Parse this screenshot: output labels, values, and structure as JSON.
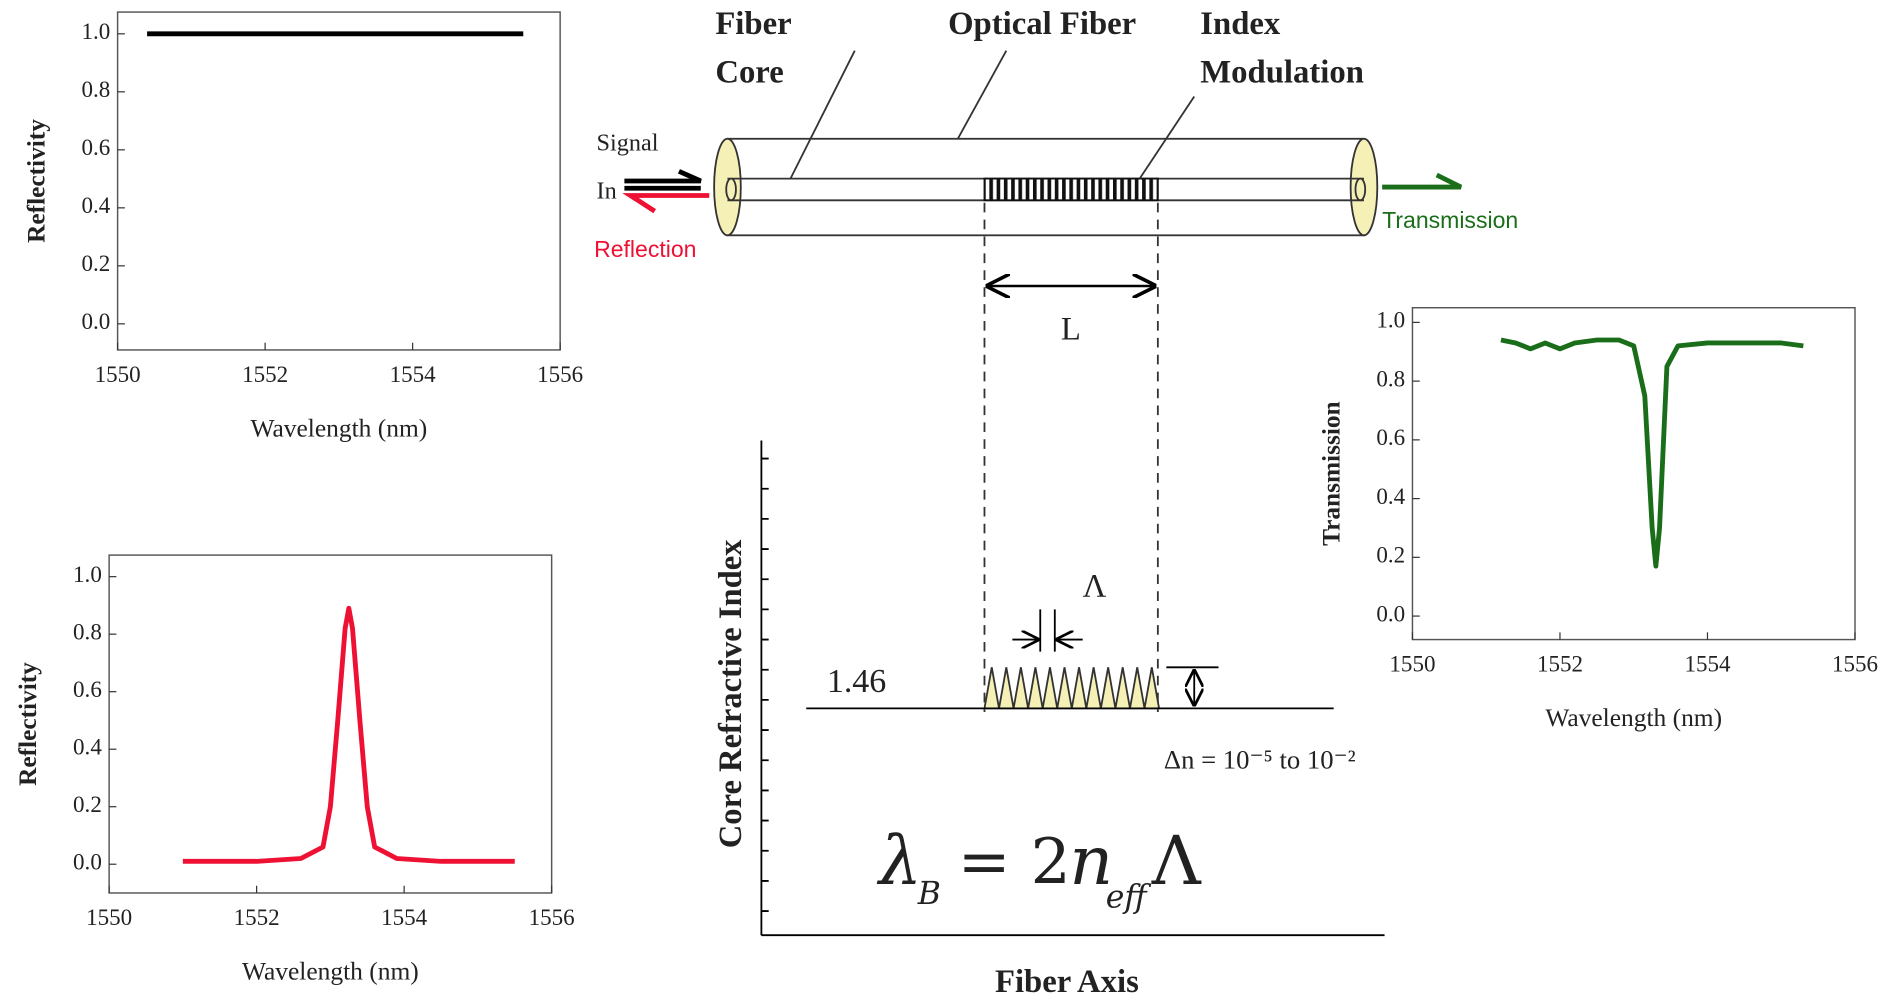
{
  "chart_data": [
    {
      "type": "line",
      "y_label": "Reflectivity",
      "x_label": "Wavelength (nm)",
      "xlim": [
        1550,
        1556
      ],
      "xticks": [
        1550,
        1552,
        1554,
        1556
      ],
      "ylim": [
        -0.09,
        1.075
      ],
      "yticks": [
        {
          "value": 0,
          "label": "0.0"
        },
        0.2,
        0.4,
        0.6,
        0.8,
        {
          "value": 1,
          "label": "1.0"
        }
      ],
      "series": [
        {
          "color": "#000000",
          "x": [
            1550.4,
            1555.5
          ],
          "values": [
            1.0,
            1.0
          ]
        }
      ]
    },
    {
      "type": "line",
      "y_label": "Reflectivity",
      "x_label": "Wavelength (nm)",
      "xlim": [
        1550,
        1556
      ],
      "xticks": [
        1550,
        1552,
        1554,
        1556
      ],
      "ylim": [
        -0.1,
        1.075
      ],
      "yticks": [
        {
          "value": 0,
          "label": "0.0"
        },
        0.2,
        0.4,
        0.6,
        0.8,
        {
          "value": 1,
          "label": "1.0"
        }
      ],
      "series": [
        {
          "color": "#ee1133",
          "x": [
            1551,
            1552,
            1552.6,
            1552.9,
            1553.0,
            1553.1,
            1553.2,
            1553.25,
            1553.3,
            1553.4,
            1553.5,
            1553.6,
            1553.9,
            1554.5,
            1555.5
          ],
          "values": [
            0.01,
            0.01,
            0.02,
            0.06,
            0.2,
            0.5,
            0.82,
            0.89,
            0.82,
            0.5,
            0.2,
            0.06,
            0.02,
            0.01,
            0.01
          ]
        }
      ]
    },
    {
      "type": "line",
      "y_label": "Transmission",
      "x_label": "Wavelength (nm)",
      "xlim": [
        1550,
        1556
      ],
      "xticks": [
        1550,
        1552,
        1554,
        1556
      ],
      "ylim": [
        -0.08,
        1.05
      ],
      "yticks": [
        {
          "value": 0,
          "label": "0.0"
        },
        0.2,
        0.4,
        0.6,
        0.8,
        {
          "value": 1,
          "label": "1.0"
        }
      ],
      "series": [
        {
          "color": "#1a6e1a",
          "x": [
            1551.2,
            1551.4,
            1551.6,
            1551.8,
            1552.0,
            1552.2,
            1552.5,
            1552.8,
            1553.0,
            1553.15,
            1553.25,
            1553.3,
            1553.35,
            1553.45,
            1553.6,
            1554.0,
            1554.5,
            1555.0,
            1555.3
          ],
          "values": [
            0.94,
            0.93,
            0.91,
            0.93,
            0.91,
            0.93,
            0.94,
            0.94,
            0.92,
            0.75,
            0.3,
            0.17,
            0.3,
            0.85,
            0.92,
            0.93,
            0.93,
            0.93,
            0.92
          ]
        }
      ]
    }
  ],
  "diagram": {
    "fiber_core": [
      "Fiber",
      "Core"
    ],
    "optical_fiber": "Optical Fiber",
    "index_modulation": [
      "Index",
      "Modulation"
    ],
    "signal_in": [
      "Signal",
      "In"
    ],
    "reflection": "Reflection",
    "transmission": "Transmission",
    "length": "L",
    "period": "Λ",
    "core_index": "1.46",
    "delta_n": "Δn = 10⁻⁵ to 10⁻²",
    "y_label": "Core Refractive Index",
    "x_label": "Fiber Axis",
    "formula": {
      "lambda": "λ",
      "sub_b": "B",
      "eq": "= 2",
      "n": "n",
      "sub_eff": "eff",
      "period": "Λ"
    }
  }
}
